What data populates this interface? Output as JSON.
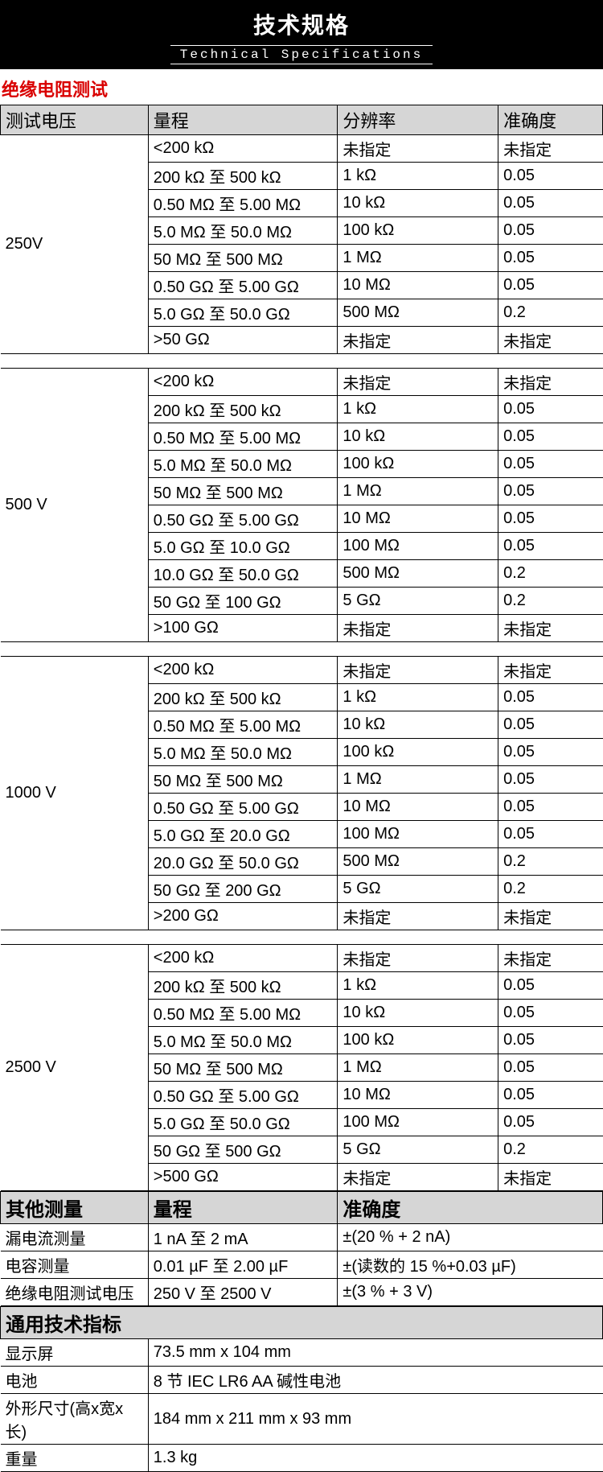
{
  "header": {
    "title_zh": "技术规格",
    "title_en": "Technical Specifications"
  },
  "section": {
    "insulation": "绝缘电阻测试"
  },
  "colhdr": {
    "voltage": "测试电压",
    "range": "量程",
    "resolution": "分辨率",
    "accuracy": "准确度"
  },
  "groups": [
    {
      "voltage": "250V",
      "rows": [
        {
          "range": "<200 kΩ",
          "res": "未指定",
          "acc": "未指定"
        },
        {
          "range": "200 kΩ 至 500 kΩ",
          "res": "1 kΩ",
          "acc": "0.05"
        },
        {
          "range": "0.50 MΩ 至 5.00 MΩ",
          "res": "10 kΩ",
          "acc": "0.05"
        },
        {
          "range": "5.0 MΩ 至 50.0 MΩ",
          "res": "100 kΩ",
          "acc": "0.05"
        },
        {
          "range": "50 MΩ 至 500 MΩ",
          "res": "1 MΩ",
          "acc": "0.05"
        },
        {
          "range": "0.50 GΩ 至 5.00 GΩ",
          "res": "10 MΩ",
          "acc": "0.05"
        },
        {
          "range": "5.0 GΩ 至 50.0 GΩ",
          "res": "500 MΩ",
          "acc": "0.2"
        },
        {
          "range": ">50 GΩ",
          "res": "未指定",
          "acc": "未指定"
        }
      ]
    },
    {
      "voltage": "500 V",
      "rows": [
        {
          "range": "<200 kΩ",
          "res": "未指定",
          "acc": "未指定"
        },
        {
          "range": "200 kΩ 至 500 kΩ",
          "res": "1 kΩ",
          "acc": "0.05"
        },
        {
          "range": "0.50 MΩ 至 5.00 MΩ",
          "res": "10 kΩ",
          "acc": "0.05"
        },
        {
          "range": "5.0 MΩ 至 50.0 MΩ",
          "res": "100 kΩ",
          "acc": "0.05"
        },
        {
          "range": "50 MΩ 至 500 MΩ",
          "res": "1 MΩ",
          "acc": "0.05"
        },
        {
          "range": "0.50 GΩ 至 5.00 GΩ",
          "res": "10 MΩ",
          "acc": "0.05"
        },
        {
          "range": "5.0 GΩ 至 10.0 GΩ",
          "res": "100 MΩ",
          "acc": "0.05"
        },
        {
          "range": "10.0 GΩ 至 50.0 GΩ",
          "res": "500 MΩ",
          "acc": "0.2"
        },
        {
          "range": "50 GΩ 至 100 GΩ",
          "res": "5 GΩ",
          "acc": "0.2"
        },
        {
          "range": ">100 GΩ",
          "res": "未指定",
          "acc": "未指定"
        }
      ]
    },
    {
      "voltage": "1000 V",
      "rows": [
        {
          "range": "<200 kΩ",
          "res": "未指定",
          "acc": "未指定"
        },
        {
          "range": "200 kΩ 至 500 kΩ",
          "res": "1 kΩ",
          "acc": "0.05"
        },
        {
          "range": "0.50 MΩ 至 5.00 MΩ",
          "res": "10 kΩ",
          "acc": "0.05"
        },
        {
          "range": "5.0 MΩ 至 50.0 MΩ",
          "res": "100 kΩ",
          "acc": "0.05"
        },
        {
          "range": "50 MΩ 至 500 MΩ",
          "res": "1 MΩ",
          "acc": "0.05"
        },
        {
          "range": "0.50 GΩ 至 5.00 GΩ",
          "res": "10 MΩ",
          "acc": "0.05"
        },
        {
          "range": "5.0 GΩ 至 20.0 GΩ",
          "res": "100 MΩ",
          "acc": "0.05"
        },
        {
          "range": "20.0 GΩ 至 50.0 GΩ",
          "res": "500 MΩ",
          "acc": "0.2"
        },
        {
          "range": "50 GΩ 至 200 GΩ",
          "res": "5 GΩ",
          "acc": "0.2"
        },
        {
          "range": ">200 GΩ",
          "res": "未指定",
          "acc": "未指定"
        }
      ]
    },
    {
      "voltage": "2500 V",
      "rows": [
        {
          "range": "<200 kΩ",
          "res": "未指定",
          "acc": "未指定"
        },
        {
          "range": "200 kΩ 至 500 kΩ",
          "res": "1 kΩ",
          "acc": "0.05"
        },
        {
          "range": "0.50 MΩ 至 5.00 MΩ",
          "res": "10 kΩ",
          "acc": "0.05"
        },
        {
          "range": "5.0 MΩ 至 50.0 MΩ",
          "res": "100 kΩ",
          "acc": "0.05"
        },
        {
          "range": "50 MΩ 至 500 MΩ",
          "res": "1 MΩ",
          "acc": "0.05"
        },
        {
          "range": "0.50 GΩ 至 5.00 GΩ",
          "res": "10 MΩ",
          "acc": "0.05"
        },
        {
          "range": "5.0 GΩ 至 50.0 GΩ",
          "res": "100 MΩ",
          "acc": "0.05"
        },
        {
          "range": "50 GΩ 至 500 GΩ",
          "res": "5 GΩ",
          "acc": "0.2"
        },
        {
          "range": ">500 GΩ",
          "res": "未指定",
          "acc": "未指定"
        }
      ]
    }
  ],
  "other": {
    "header": {
      "title": "其他测量",
      "range": "量程",
      "accuracy": "准确度"
    },
    "rows": [
      {
        "label": "漏电流测量",
        "range": "1 nA 至 2 mA",
        "acc": "±(20 % + 2 nA)"
      },
      {
        "label": "电容测量",
        "range": "0.01 µF 至 2.00 µF",
        "acc": "±(读数的 15 %+0.03 µF)"
      },
      {
        "label": "绝缘电阻测试电压",
        "range": "250 V 至 2500 V",
        "acc": "±(3 % + 3 V)"
      }
    ]
  },
  "general": {
    "title": "通用技术指标",
    "rows": [
      {
        "label": "显示屏",
        "value": "73.5 mm x 104 mm"
      },
      {
        "label": "电池",
        "value": "8 节 IEC LR6 AA 碱性电池"
      },
      {
        "label": "外形尺寸(高x宽x长)",
        "value": "184 mm x 211 mm x 93 mm"
      },
      {
        "label": "重量",
        "value": "1.3 kg"
      }
    ]
  }
}
